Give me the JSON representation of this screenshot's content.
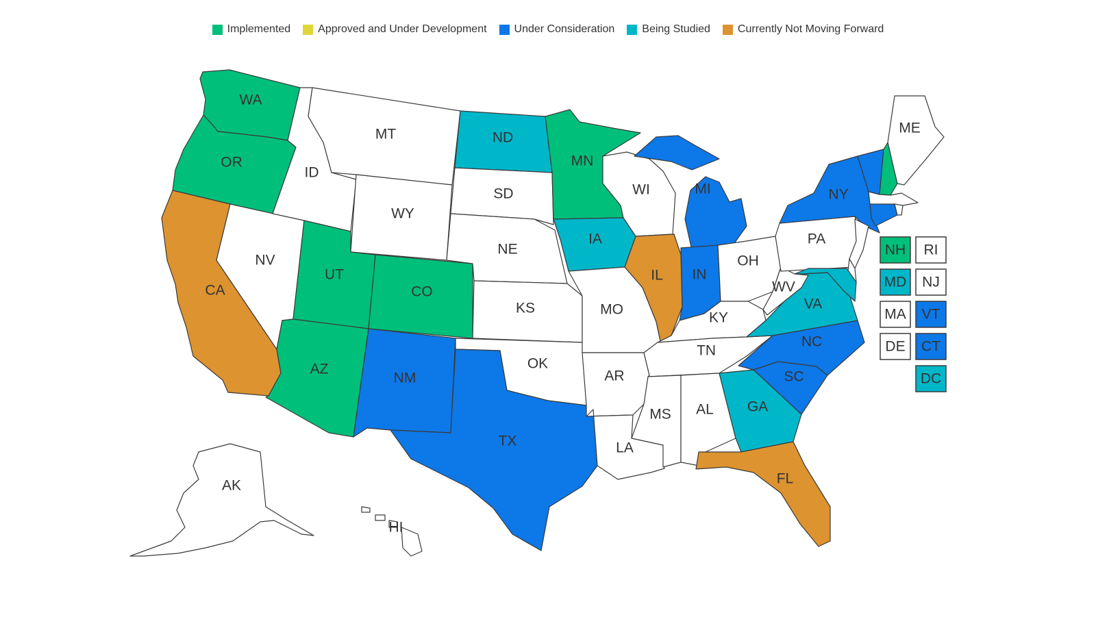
{
  "colors": {
    "implemented": "#00bf7a",
    "approved": "#e0d63a",
    "consideration": "#0d78e8",
    "studied": "#00b6c9",
    "not_forward": "#dc9330",
    "none": "#ffffff",
    "border": "#3a3a3a"
  },
  "legend": [
    {
      "key": "implemented",
      "label": "Implemented"
    },
    {
      "key": "approved",
      "label": "Approved and Under Development"
    },
    {
      "key": "consideration",
      "label": "Under Consideration"
    },
    {
      "key": "studied",
      "label": "Being Studied"
    },
    {
      "key": "not_forward",
      "label": "Currently Not Moving Forward"
    }
  ],
  "states": [
    {
      "abbr": "WA",
      "status": "implemented"
    },
    {
      "abbr": "OR",
      "status": "implemented"
    },
    {
      "abbr": "CA",
      "status": "not_forward"
    },
    {
      "abbr": "NV",
      "status": "none"
    },
    {
      "abbr": "ID",
      "status": "none"
    },
    {
      "abbr": "MT",
      "status": "none"
    },
    {
      "abbr": "WY",
      "status": "none"
    },
    {
      "abbr": "UT",
      "status": "implemented"
    },
    {
      "abbr": "AZ",
      "status": "implemented"
    },
    {
      "abbr": "CO",
      "status": "implemented"
    },
    {
      "abbr": "NM",
      "status": "consideration"
    },
    {
      "abbr": "ND",
      "status": "studied"
    },
    {
      "abbr": "SD",
      "status": "none"
    },
    {
      "abbr": "NE",
      "status": "none"
    },
    {
      "abbr": "KS",
      "status": "none"
    },
    {
      "abbr": "OK",
      "status": "none"
    },
    {
      "abbr": "TX",
      "status": "consideration"
    },
    {
      "abbr": "MN",
      "status": "implemented"
    },
    {
      "abbr": "IA",
      "status": "studied"
    },
    {
      "abbr": "MO",
      "status": "none"
    },
    {
      "abbr": "AR",
      "status": "none"
    },
    {
      "abbr": "LA",
      "status": "none"
    },
    {
      "abbr": "WI",
      "status": "none"
    },
    {
      "abbr": "IL",
      "status": "not_forward"
    },
    {
      "abbr": "MI",
      "status": "consideration"
    },
    {
      "abbr": "IN",
      "status": "consideration"
    },
    {
      "abbr": "OH",
      "status": "none"
    },
    {
      "abbr": "KY",
      "status": "none"
    },
    {
      "abbr": "TN",
      "status": "none"
    },
    {
      "abbr": "MS",
      "status": "none"
    },
    {
      "abbr": "AL",
      "status": "none"
    },
    {
      "abbr": "GA",
      "status": "studied"
    },
    {
      "abbr": "FL",
      "status": "not_forward"
    },
    {
      "abbr": "SC",
      "status": "consideration"
    },
    {
      "abbr": "NC",
      "status": "consideration"
    },
    {
      "abbr": "VA",
      "status": "studied"
    },
    {
      "abbr": "WV",
      "status": "none"
    },
    {
      "abbr": "PA",
      "status": "none"
    },
    {
      "abbr": "NY",
      "status": "consideration"
    },
    {
      "abbr": "VT",
      "status": "consideration"
    },
    {
      "abbr": "NH",
      "status": "implemented"
    },
    {
      "abbr": "ME",
      "status": "none"
    },
    {
      "abbr": "MA",
      "status": "none"
    },
    {
      "abbr": "CT",
      "status": "consideration"
    },
    {
      "abbr": "RI",
      "status": "none"
    },
    {
      "abbr": "NJ",
      "status": "none"
    },
    {
      "abbr": "DE",
      "status": "none"
    },
    {
      "abbr": "MD",
      "status": "studied"
    },
    {
      "abbr": "DC",
      "status": "studied"
    },
    {
      "abbr": "AK",
      "status": "none"
    },
    {
      "abbr": "HI",
      "status": "none"
    }
  ],
  "small_state_boxes": [
    "NH",
    "RI",
    "MD",
    "NJ",
    "MA",
    "VT",
    "DE",
    "CT",
    "DC"
  ]
}
